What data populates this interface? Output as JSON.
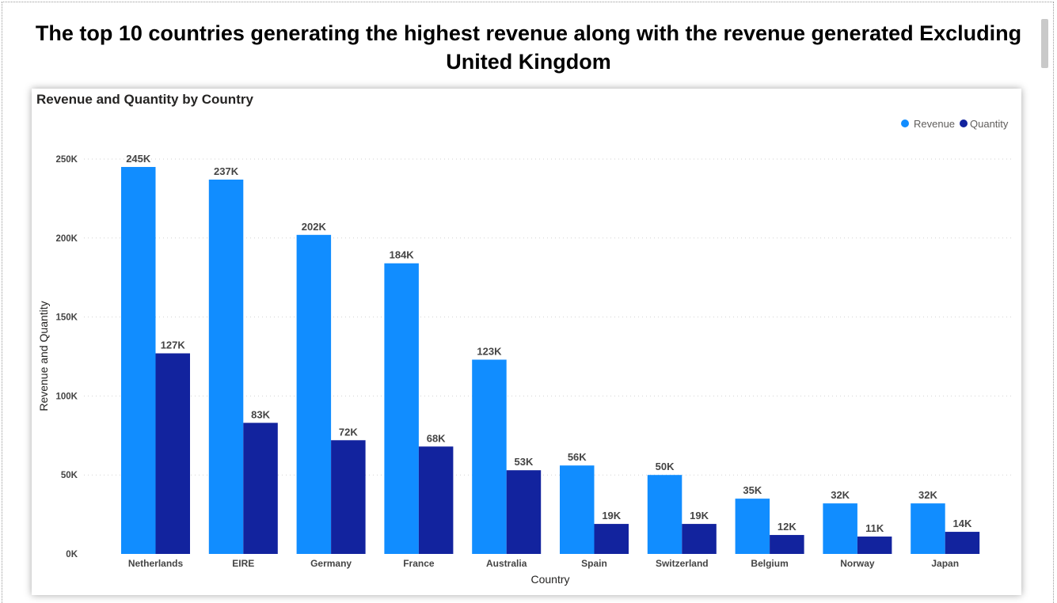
{
  "page": {
    "title": "The top 10 countries generating the highest revenue along with  the revenue generated Excluding United Kingdom"
  },
  "colors": {
    "revenue": "#118DFF",
    "quantity": "#12239E"
  },
  "chart_data": {
    "type": "bar",
    "title": "Revenue and Quantity by Country",
    "xlabel": "Country",
    "ylabel": "Revenue and Quantity",
    "ylim": [
      0,
      250000
    ],
    "yticks": [
      0,
      50000,
      100000,
      150000,
      200000,
      250000
    ],
    "ytick_labels": [
      "0K",
      "50K",
      "100K",
      "150K",
      "200K",
      "250K"
    ],
    "grid": true,
    "legend_position": "top-right",
    "categories": [
      "Netherlands",
      "EIRE",
      "Germany",
      "France",
      "Australia",
      "Spain",
      "Switzerland",
      "Belgium",
      "Norway",
      "Japan"
    ],
    "series": [
      {
        "name": "Revenue",
        "values": [
          245000,
          237000,
          202000,
          184000,
          123000,
          56000,
          50000,
          35000,
          32000,
          32000
        ],
        "labels": [
          "245K",
          "237K",
          "202K",
          "184K",
          "123K",
          "56K",
          "50K",
          "35K",
          "32K",
          "32K"
        ]
      },
      {
        "name": "Quantity",
        "values": [
          127000,
          83000,
          72000,
          68000,
          53000,
          19000,
          19000,
          12000,
          11000,
          14000
        ],
        "labels": [
          "127K",
          "83K",
          "72K",
          "68K",
          "53K",
          "19K",
          "19K",
          "12K",
          "11K",
          "14K"
        ]
      }
    ]
  }
}
